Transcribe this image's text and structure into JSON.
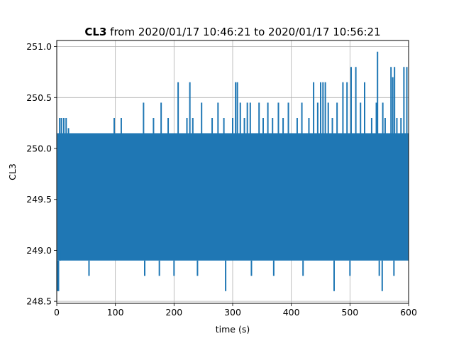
{
  "chart_data": {
    "type": "line",
    "title_bold": "CL3",
    "title_rest": " from 2020/01/17 10:46:21 to 2020/01/17 10:56:21",
    "xlabel": "time (s)",
    "ylabel": "CL3",
    "xlim": [
      0,
      600
    ],
    "ylim": [
      248.48,
      251.06
    ],
    "xticks": [
      0,
      100,
      200,
      300,
      400,
      500,
      600
    ],
    "yticks": [
      248.5,
      249.0,
      249.5,
      250.0,
      250.5,
      251.0
    ],
    "ytick_labels": [
      "248.5",
      "249.0",
      "249.5",
      "250.0",
      "250.5",
      "251.0"
    ],
    "grid": true,
    "series": [
      {
        "color": "#1f77b4",
        "band_upper": 250.15,
        "band_lower": 248.9,
        "spikes_up": [
          [
            5,
            250.3
          ],
          [
            8,
            250.3
          ],
          [
            12,
            250.3
          ],
          [
            16,
            250.3
          ],
          [
            20,
            250.2
          ],
          [
            98,
            250.3
          ],
          [
            110,
            250.3
          ],
          [
            148,
            250.45
          ],
          [
            165,
            250.3
          ],
          [
            178,
            250.45
          ],
          [
            190,
            250.3
          ],
          [
            207,
            250.65
          ],
          [
            222,
            250.3
          ],
          [
            227,
            250.65
          ],
          [
            232,
            250.3
          ],
          [
            247,
            250.45
          ],
          [
            265,
            250.3
          ],
          [
            275,
            250.45
          ],
          [
            285,
            250.3
          ],
          [
            300,
            250.3
          ],
          [
            305,
            250.65
          ],
          [
            308,
            250.65
          ],
          [
            313,
            250.45
          ],
          [
            320,
            250.3
          ],
          [
            325,
            250.45
          ],
          [
            330,
            250.45
          ],
          [
            345,
            250.45
          ],
          [
            352,
            250.3
          ],
          [
            360,
            250.45
          ],
          [
            368,
            250.3
          ],
          [
            378,
            250.45
          ],
          [
            386,
            250.3
          ],
          [
            395,
            250.45
          ],
          [
            410,
            250.3
          ],
          [
            418,
            250.45
          ],
          [
            430,
            250.3
          ],
          [
            438,
            250.65
          ],
          [
            445,
            250.45
          ],
          [
            450,
            250.65
          ],
          [
            454,
            250.65
          ],
          [
            458,
            250.65
          ],
          [
            463,
            250.45
          ],
          [
            470,
            250.3
          ],
          [
            478,
            250.45
          ],
          [
            488,
            250.65
          ],
          [
            495,
            250.65
          ],
          [
            502,
            250.8
          ],
          [
            510,
            250.8
          ],
          [
            518,
            250.45
          ],
          [
            525,
            250.65
          ],
          [
            537,
            250.3
          ],
          [
            545,
            250.45
          ],
          [
            547,
            250.95
          ],
          [
            556,
            250.45
          ],
          [
            560,
            250.3
          ],
          [
            570,
            250.8
          ],
          [
            573,
            250.7
          ],
          [
            576,
            250.8
          ],
          [
            580,
            250.3
          ],
          [
            587,
            250.3
          ],
          [
            592,
            250.8
          ],
          [
            597,
            250.8
          ]
        ],
        "spikes_down": [
          [
            1,
            248.6
          ],
          [
            3,
            248.6
          ],
          [
            6,
            249.0
          ],
          [
            55,
            248.75
          ],
          [
            150,
            248.75
          ],
          [
            175,
            248.75
          ],
          [
            200,
            248.75
          ],
          [
            240,
            248.75
          ],
          [
            288,
            248.6
          ],
          [
            332,
            248.75
          ],
          [
            370,
            248.75
          ],
          [
            420,
            248.75
          ],
          [
            473,
            248.6
          ],
          [
            500,
            248.75
          ],
          [
            550,
            248.75
          ],
          [
            555,
            248.6
          ],
          [
            575,
            248.75
          ]
        ]
      }
    ]
  }
}
